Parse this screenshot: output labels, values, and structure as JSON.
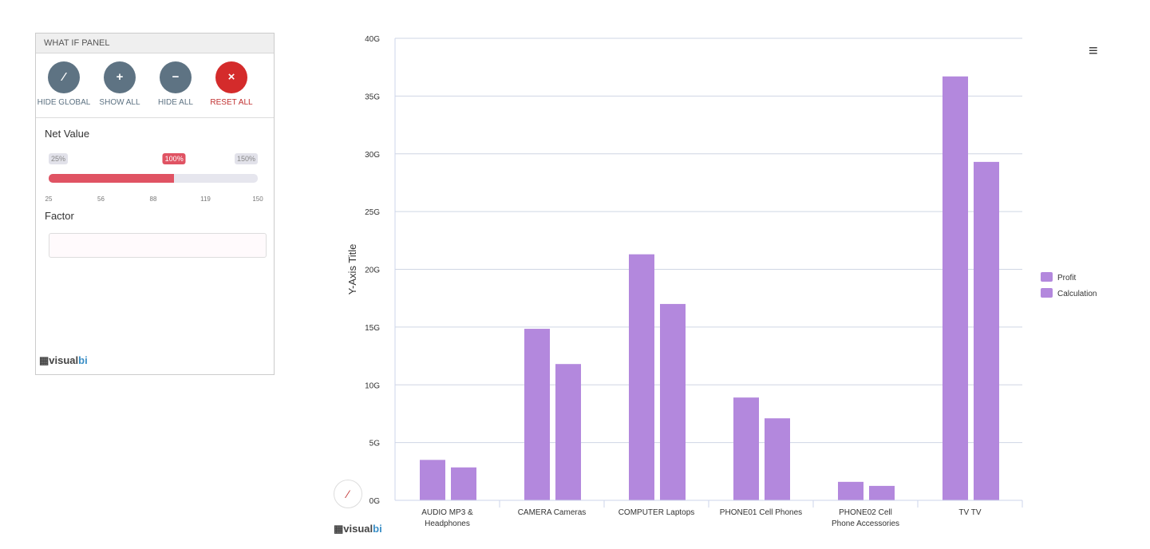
{
  "panel": {
    "title": "WHAT IF PANEL",
    "buttons": [
      {
        "label": "HIDE GLOBAL",
        "icon": "wand-icon",
        "glyph": "⁄"
      },
      {
        "label": "SHOW ALL",
        "icon": "plus-icon",
        "glyph": "+"
      },
      {
        "label": "HIDE ALL",
        "icon": "minus-icon",
        "glyph": "−"
      },
      {
        "label": "RESET ALL",
        "icon": "close-icon",
        "glyph": "×"
      }
    ],
    "net_value": {
      "label": "Net Value",
      "min_tag": "25%",
      "max_tag": "150%",
      "current_tag": "100%",
      "value_percent": 100,
      "min": 25,
      "max": 150,
      "ticks": [
        "25",
        "56",
        "88",
        "119",
        "150"
      ]
    },
    "factor": {
      "label": "Factor",
      "value": ""
    }
  },
  "logo": {
    "text_a": "visual",
    "text_b": "bi"
  },
  "chart_data": {
    "type": "bar",
    "categories": [
      "AUDIO MP3 & Headphones",
      "CAMERA Cameras",
      "COMPUTER Laptops",
      "PHONE01 Cell Phones",
      "PHONE02 Cell Phone Accessories",
      "TV TV"
    ],
    "series": [
      {
        "name": "Profit",
        "values": [
          3.5,
          14.85,
          21.3,
          8.9,
          1.6,
          36.7
        ],
        "color": "#b388dd"
      },
      {
        "name": "Calculation",
        "values": [
          2.85,
          11.8,
          17.0,
          7.1,
          1.25,
          29.3
        ],
        "color": "#b388dd"
      }
    ],
    "ylabel": "Y-Axis Title",
    "ylim": [
      0,
      40
    ],
    "yticks": [
      "0G",
      "5G",
      "10G",
      "15G",
      "20G",
      "25G",
      "30G",
      "35G",
      "40G"
    ],
    "grid": true,
    "legend": "right"
  }
}
